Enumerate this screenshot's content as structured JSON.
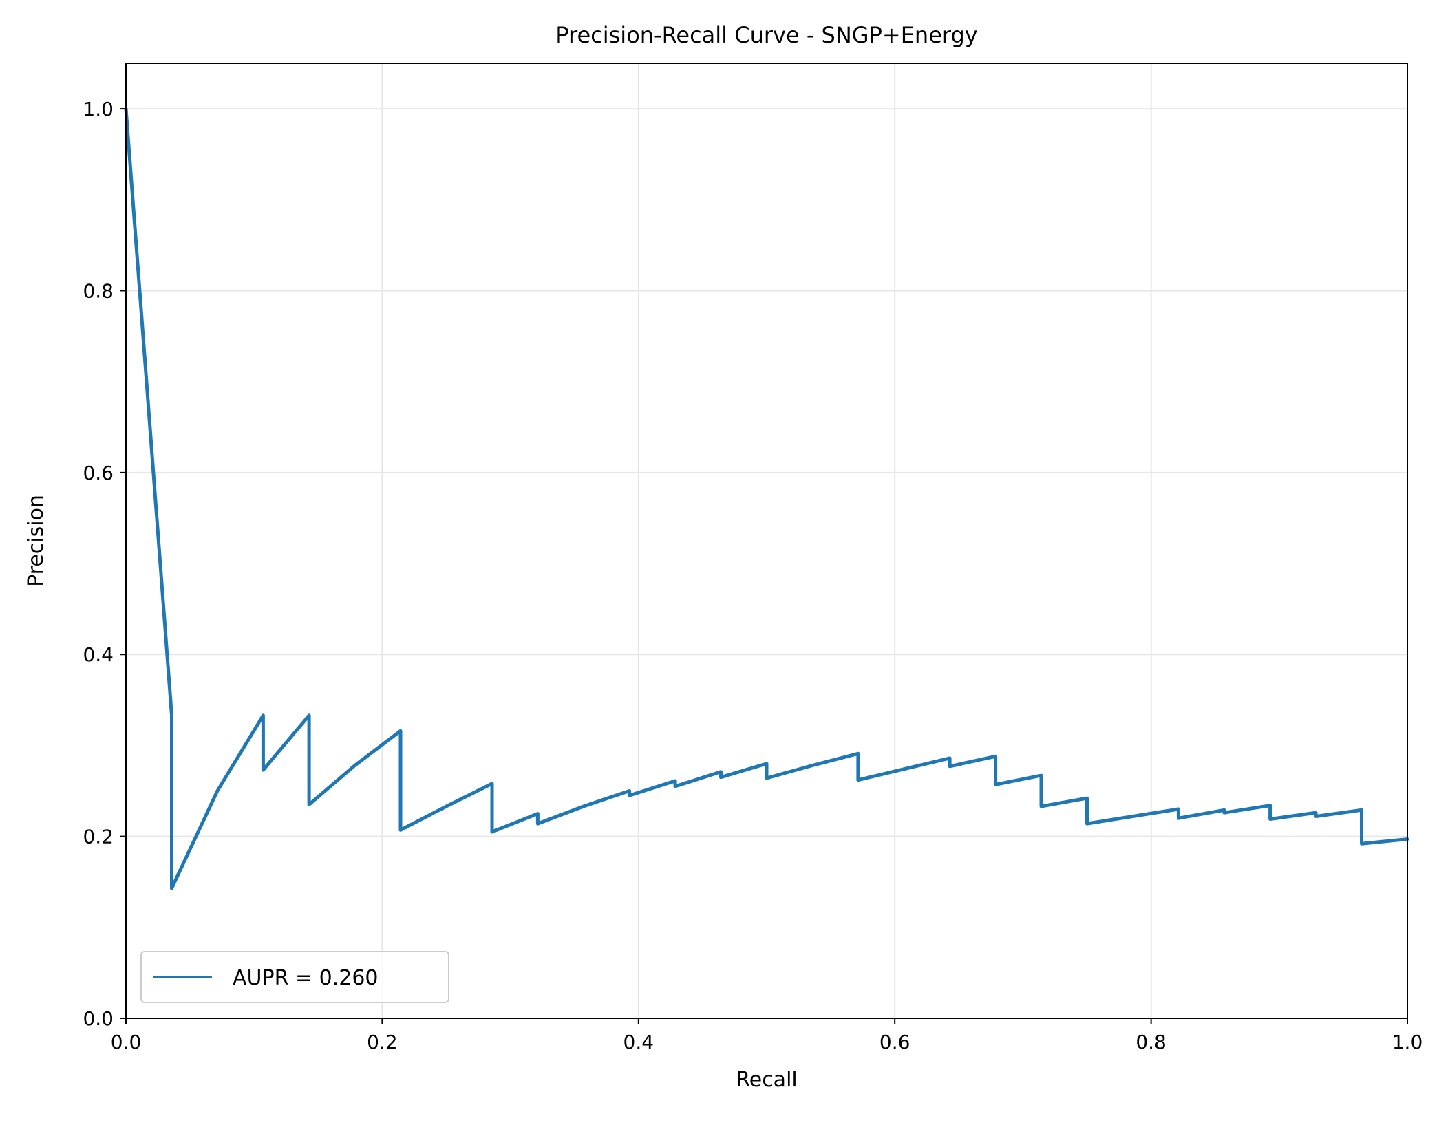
{
  "chart_data": {
    "type": "line",
    "title": "Precision-Recall Curve - SNGP+Energy",
    "xlabel": "Recall",
    "ylabel": "Precision",
    "xlim": [
      0.0,
      1.0
    ],
    "ylim": [
      0.0,
      1.05
    ],
    "xticks": [
      "0.0",
      "0.2",
      "0.4",
      "0.6",
      "0.8",
      "1.0"
    ],
    "yticks": [
      "0.0",
      "0.2",
      "0.4",
      "0.6",
      "0.8",
      "1.0"
    ],
    "grid": true,
    "legend_position": "lower-left",
    "series": [
      {
        "name": "AUPR = 0.260",
        "color": "#1f77b4",
        "x": [
          0.0,
          0.0357,
          0.0357,
          0.0714,
          0.1071,
          0.1071,
          0.1429,
          0.1429,
          0.1786,
          0.2143,
          0.2143,
          0.25,
          0.2857,
          0.2857,
          0.3214,
          0.3214,
          0.3571,
          0.3929,
          0.3929,
          0.4286,
          0.4286,
          0.4643,
          0.4643,
          0.5,
          0.5,
          0.5357,
          0.5714,
          0.5714,
          0.6071,
          0.6429,
          0.6429,
          0.6786,
          0.6786,
          0.7143,
          0.7143,
          0.75,
          0.75,
          0.7857,
          0.8214,
          0.8214,
          0.8571,
          0.8571,
          0.8929,
          0.8929,
          0.9286,
          0.9286,
          0.9643,
          0.9643,
          1.0
        ],
        "y": [
          1.0,
          0.333,
          0.143,
          0.25,
          0.333,
          0.273,
          0.333,
          0.235,
          0.278,
          0.316,
          0.207,
          0.233,
          0.258,
          0.205,
          0.225,
          0.214,
          0.233,
          0.25,
          0.245,
          0.261,
          0.255,
          0.271,
          0.265,
          0.28,
          0.264,
          0.278,
          0.291,
          0.262,
          0.274,
          0.286,
          0.277,
          0.288,
          0.257,
          0.267,
          0.233,
          0.242,
          0.214,
          0.222,
          0.23,
          0.22,
          0.229,
          0.226,
          0.234,
          0.219,
          0.226,
          0.222,
          0.229,
          0.192,
          0.197
        ]
      }
    ]
  }
}
